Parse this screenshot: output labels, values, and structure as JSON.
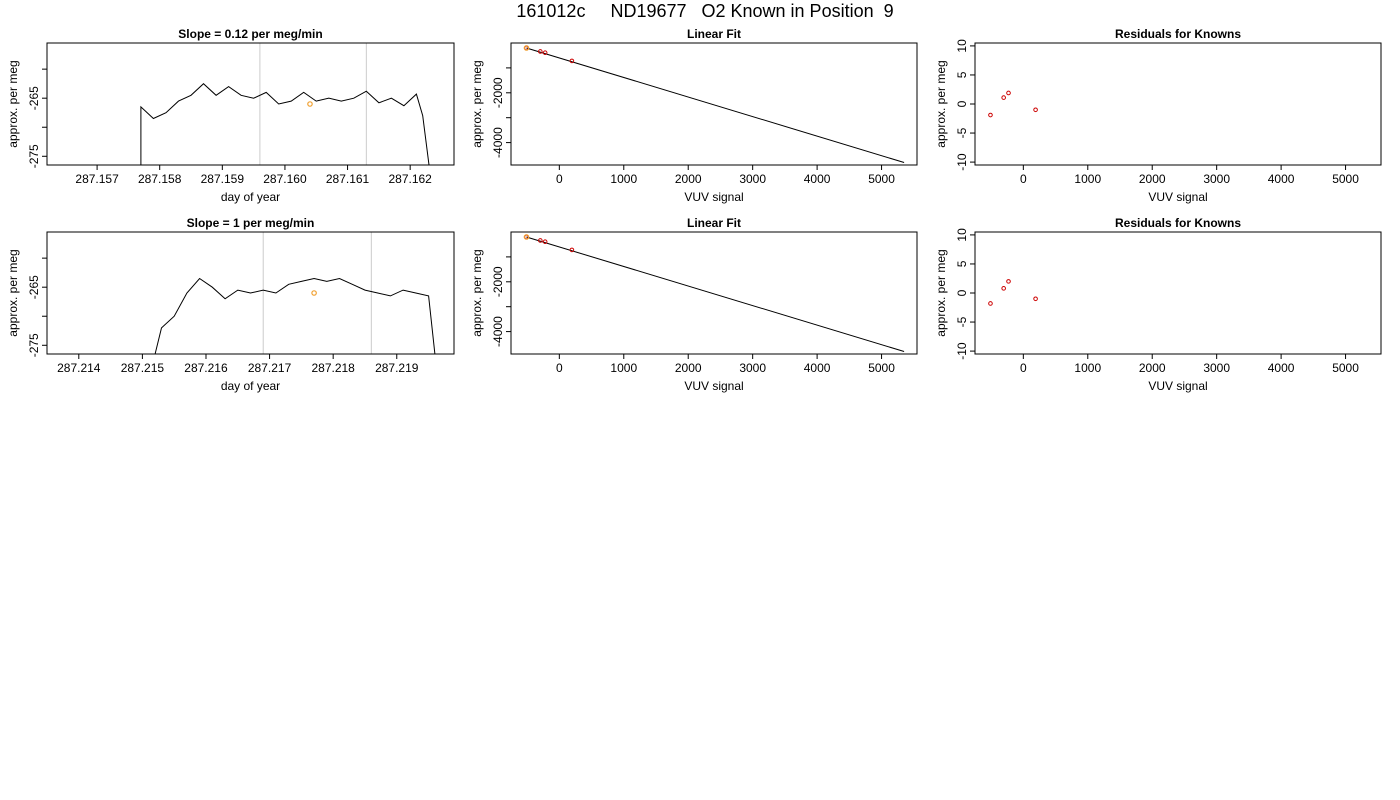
{
  "figure_title": "161012c     ND19677   O2 Known in Position  9",
  "chart_data": [
    {
      "type": "line",
      "title": "Slope =  0.12  per meg/min",
      "xlabel": "day of year",
      "ylabel": "approx. per meg",
      "xlim": [
        287.1562,
        287.1627
      ],
      "ylim": [
        -276.5,
        -255.5
      ],
      "x_ticks": [
        287.157,
        287.158,
        287.159,
        287.16,
        287.161,
        287.162
      ],
      "x_tick_labels": [
        "287.157",
        "287.158",
        "287.159",
        "287.160",
        "287.161",
        "287.162"
      ],
      "y_ticks": [
        -275,
        -270,
        -265,
        -260
      ],
      "y_tick_labels": [
        "-275",
        "",
        "-265",
        ""
      ],
      "vlines": [
        287.1596,
        287.1613
      ],
      "series": [
        {
          "x": [
            287.1577,
            287.1577,
            287.1579,
            287.1581,
            287.1583,
            287.1585,
            287.1587,
            287.1589,
            287.1591,
            287.1593,
            287.1595,
            287.1597,
            287.1599,
            287.1601,
            287.1603,
            287.1605,
            287.1607,
            287.1609,
            287.1611,
            287.1613,
            287.1615,
            287.1617,
            287.1619,
            287.1621,
            287.1622,
            287.1623
          ],
          "y": [
            -276.5,
            -266.5,
            -268.5,
            -267.5,
            -265.5,
            -264.5,
            -262.5,
            -264.5,
            -263.0,
            -264.5,
            -265.0,
            -264.0,
            -266.0,
            -265.5,
            -264.0,
            -265.5,
            -265.0,
            -265.5,
            -265.0,
            -263.8,
            -265.8,
            -265.0,
            -266.3,
            -264.3,
            -268.0,
            -276.5
          ]
        }
      ],
      "highlight_point": {
        "x": 287.1604,
        "y": -266,
        "color": "#f0a030"
      }
    },
    {
      "type": "scatter",
      "title": "Linear Fit",
      "xlabel": "VUV signal",
      "ylabel": "approx. per meg",
      "xlim": [
        -750,
        5550
      ],
      "ylim": [
        -4900,
        0
      ],
      "x_ticks": [
        0,
        1000,
        2000,
        3000,
        4000,
        5000
      ],
      "y_ticks": [
        -4000,
        -3000,
        -2000,
        -1000
      ],
      "y_tick_labels": [
        "-4000",
        "",
        "-2000",
        ""
      ],
      "points": {
        "x": [
          -510,
          -295,
          -220,
          195
        ],
        "y": [
          -200,
          -340,
          -390,
          -720
        ],
        "color": "#cc0000"
      },
      "highlight_point": {
        "x": -510,
        "y": -200,
        "color": "#f0a030"
      },
      "fit_line": {
        "x": [
          -510,
          5350
        ],
        "y": [
          -200,
          -4800
        ]
      }
    },
    {
      "type": "scatter",
      "title": "Residuals for Knowns",
      "xlabel": "VUV signal",
      "ylabel": "approx. per meg",
      "xlim": [
        -750,
        5550
      ],
      "ylim": [
        -10.5,
        10.5
      ],
      "x_ticks": [
        0,
        1000,
        2000,
        3000,
        4000,
        5000
      ],
      "y_ticks": [
        -10,
        -5,
        0,
        5,
        10
      ],
      "points": {
        "x": [
          -510,
          -305,
          -230,
          190
        ],
        "y": [
          -1.9,
          1.1,
          1.9,
          -1.0
        ],
        "color": "#cc0000"
      }
    },
    {
      "type": "line",
      "title": "Slope =  1  per meg/min",
      "xlabel": "day of year",
      "ylabel": "approx. per meg",
      "xlim": [
        287.2135,
        287.2199
      ],
      "ylim": [
        -276.5,
        -255.5
      ],
      "x_ticks": [
        287.214,
        287.215,
        287.216,
        287.217,
        287.218,
        287.219
      ],
      "x_tick_labels": [
        "287.214",
        "287.215",
        "287.216",
        "287.217",
        "287.218",
        "287.219"
      ],
      "y_ticks": [
        -275,
        -270,
        -265,
        -260
      ],
      "y_tick_labels": [
        "-275",
        "",
        "-265",
        ""
      ],
      "vlines": [
        287.2169,
        287.2186
      ],
      "series": [
        {
          "x": [
            287.2152,
            287.2153,
            287.2155,
            287.2157,
            287.2159,
            287.2161,
            287.2163,
            287.2165,
            287.2167,
            287.2169,
            287.2171,
            287.2173,
            287.2175,
            287.2177,
            287.2179,
            287.2181,
            287.2183,
            287.2185,
            287.2187,
            287.2189,
            287.2191,
            287.2193,
            287.2195,
            287.2196
          ],
          "y": [
            -276.5,
            -272.0,
            -270.0,
            -266.0,
            -263.5,
            -265.0,
            -267.0,
            -265.5,
            -266.0,
            -265.5,
            -266.0,
            -264.5,
            -264.0,
            -263.5,
            -264.0,
            -263.5,
            -264.5,
            -265.5,
            -266.0,
            -266.5,
            -265.5,
            -266.0,
            -266.5,
            -276.5
          ]
        }
      ],
      "highlight_point": {
        "x": 287.2177,
        "y": -266,
        "color": "#f0a030"
      }
    },
    {
      "type": "scatter",
      "title": "Linear Fit",
      "xlabel": "VUV signal",
      "ylabel": "approx. per meg",
      "xlim": [
        -750,
        5550
      ],
      "ylim": [
        -4900,
        0
      ],
      "x_ticks": [
        0,
        1000,
        2000,
        3000,
        4000,
        5000
      ],
      "y_ticks": [
        -4000,
        -3000,
        -2000,
        -1000
      ],
      "y_tick_labels": [
        "-4000",
        "",
        "-2000",
        ""
      ],
      "points": {
        "x": [
          -510,
          -295,
          -220,
          195
        ],
        "y": [
          -200,
          -340,
          -390,
          -720
        ],
        "color": "#cc0000"
      },
      "highlight_point": {
        "x": -510,
        "y": -200,
        "color": "#f0a030"
      },
      "fit_line": {
        "x": [
          -510,
          5350
        ],
        "y": [
          -200,
          -4800
        ]
      }
    },
    {
      "type": "scatter",
      "title": "Residuals for Knowns",
      "xlabel": "VUV signal",
      "ylabel": "approx. per meg",
      "xlim": [
        -750,
        5550
      ],
      "ylim": [
        -10.5,
        10.5
      ],
      "x_ticks": [
        0,
        1000,
        2000,
        3000,
        4000,
        5000
      ],
      "y_ticks": [
        -10,
        -5,
        0,
        5,
        10
      ],
      "points": {
        "x": [
          -510,
          -305,
          -230,
          190
        ],
        "y": [
          -1.8,
          0.8,
          2.0,
          -1.0
        ],
        "color": "#cc0000"
      }
    }
  ]
}
